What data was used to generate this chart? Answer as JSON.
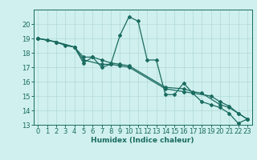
{
  "xlabel": "Humidex (Indice chaleur)",
  "xlim": [
    -0.5,
    23.5
  ],
  "ylim": [
    13,
    21
  ],
  "yticks": [
    13,
    14,
    15,
    16,
    17,
    18,
    19,
    20
  ],
  "xticks": [
    0,
    1,
    2,
    3,
    4,
    5,
    6,
    7,
    8,
    9,
    10,
    11,
    12,
    13,
    14,
    15,
    16,
    17,
    18,
    19,
    20,
    21,
    22,
    23
  ],
  "bg_color": "#cff0ee",
  "grid_color": "#b0d9d6",
  "line_color": "#1a6b60",
  "series1": [
    [
      0,
      19.0
    ],
    [
      1,
      18.9
    ],
    [
      2,
      18.75
    ],
    [
      3,
      18.5
    ],
    [
      4,
      18.4
    ],
    [
      5,
      17.3
    ],
    [
      6,
      17.7
    ],
    [
      7,
      17.0
    ],
    [
      8,
      17.2
    ],
    [
      9,
      19.2
    ],
    [
      10,
      20.5
    ],
    [
      11,
      20.2
    ],
    [
      12,
      17.5
    ],
    [
      13,
      17.5
    ],
    [
      14,
      15.1
    ],
    [
      15,
      15.1
    ],
    [
      16,
      15.9
    ],
    [
      17,
      15.2
    ],
    [
      18,
      14.6
    ],
    [
      19,
      14.4
    ],
    [
      20,
      14.2
    ],
    [
      21,
      13.8
    ],
    [
      22,
      13.1
    ],
    [
      23,
      13.4
    ]
  ],
  "series2": [
    [
      0,
      19.0
    ],
    [
      2,
      18.75
    ],
    [
      4,
      18.4
    ],
    [
      5,
      17.7
    ],
    [
      6,
      17.7
    ],
    [
      7,
      17.5
    ],
    [
      8,
      17.3
    ],
    [
      9,
      17.2
    ],
    [
      10,
      17.1
    ],
    [
      14,
      15.6
    ],
    [
      16,
      15.5
    ],
    [
      17,
      15.3
    ],
    [
      18,
      15.2
    ],
    [
      20,
      14.4
    ],
    [
      21,
      14.2
    ],
    [
      22,
      13.8
    ],
    [
      23,
      13.4
    ]
  ],
  "series3": [
    [
      0,
      19.0
    ],
    [
      2,
      18.75
    ],
    [
      4,
      18.4
    ],
    [
      5,
      17.5
    ],
    [
      7,
      17.2
    ],
    [
      8,
      17.2
    ],
    [
      9,
      17.1
    ],
    [
      10,
      17.0
    ],
    [
      14,
      15.5
    ],
    [
      16,
      15.3
    ],
    [
      17,
      15.2
    ],
    [
      19,
      15.0
    ],
    [
      20,
      14.6
    ],
    [
      21,
      14.3
    ],
    [
      22,
      13.8
    ],
    [
      23,
      13.4
    ]
  ],
  "marker_size": 2.0,
  "line_width": 0.9,
  "xlabel_fontsize": 6.5,
  "tick_fontsize": 6.0
}
